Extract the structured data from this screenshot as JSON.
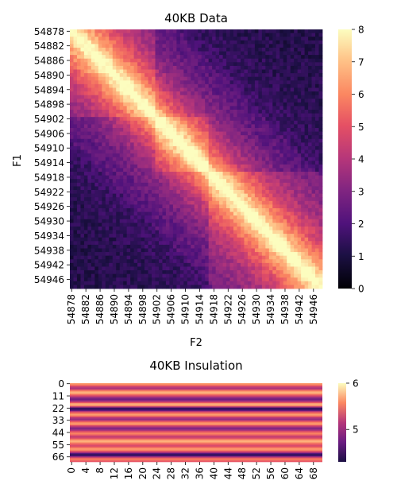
{
  "chart_data": [
    {
      "type": "heatmap",
      "title": "40KB Data",
      "xlabel": "F2",
      "ylabel": "F1",
      "bins_start": 54878,
      "bins_end": 54948,
      "tick_labels": [
        "54878",
        "54882",
        "54886",
        "54890",
        "54894",
        "54898",
        "54902",
        "54906",
        "54910",
        "54914",
        "54918",
        "54922",
        "54926",
        "54930",
        "54934",
        "54938",
        "54942",
        "54946"
      ],
      "domains": [
        [
          54878,
          54902
        ],
        [
          54902,
          54917
        ],
        [
          54917,
          54949
        ]
      ],
      "value_range": [
        0,
        8
      ],
      "colorbar_ticks": [
        "0",
        "1",
        "2",
        "3",
        "4",
        "5",
        "6",
        "7",
        "8"
      ],
      "colormap": "magma"
    },
    {
      "type": "heatmap",
      "title": "40KB Insulation",
      "x_tick_labels": [
        "0",
        "4",
        "8",
        "12",
        "16",
        "20",
        "24",
        "28",
        "32",
        "36",
        "40",
        "44",
        "48",
        "52",
        "56",
        "60",
        "64",
        "68"
      ],
      "y_tick_labels": [
        "0",
        "11",
        "22",
        "33",
        "44",
        "55",
        "66"
      ],
      "rows": 71,
      "cols": 71,
      "value_range": [
        4.3,
        6
      ],
      "colorbar_ticks": [
        "5",
        "6"
      ],
      "row_values": [
        5.6,
        5.5,
        5.3,
        5.1,
        5.0,
        5.1,
        5.4,
        5.6,
        5.7,
        5.6,
        5.4,
        5.2,
        5.0,
        4.8,
        4.7,
        4.8,
        5.0,
        5.3,
        5.6,
        5.7,
        5.5,
        5.0,
        4.45,
        4.4,
        4.6,
        5.0,
        5.3,
        5.5,
        5.6,
        5.5,
        5.2,
        5.0,
        4.9,
        5.0,
        5.3,
        5.5,
        5.6,
        5.5,
        5.2,
        5.0,
        4.8,
        4.8,
        5.0,
        5.2,
        5.4,
        5.5,
        5.4,
        5.2,
        5.1,
        5.2,
        5.4,
        5.6,
        5.7,
        5.6,
        5.4,
        5.3,
        5.2,
        5.3,
        5.5,
        5.6,
        5.5,
        5.3,
        5.0,
        4.6,
        4.4,
        4.5,
        4.9,
        5.3,
        5.5,
        5.4,
        5.3
      ]
    }
  ]
}
